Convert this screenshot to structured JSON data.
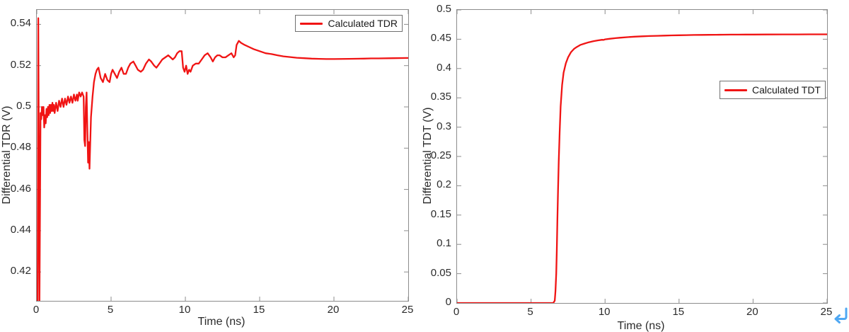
{
  "page": {
    "background": "#ffffff"
  },
  "icons": {
    "return_arrow": {
      "meaning": "return-line-break-marker",
      "color": "#4fa8f3"
    }
  },
  "chart_data": [
    {
      "type": "line",
      "title": "",
      "xlabel": "Time (ns)",
      "ylabel": "Differential TDR (V)",
      "xlim": [
        0,
        25
      ],
      "ylim": [
        0.406,
        0.547
      ],
      "xticks": [
        0,
        5,
        10,
        15,
        20,
        25
      ],
      "xtick_labels": [
        "0",
        "5",
        "10",
        "15",
        "20",
        "25"
      ],
      "yticks": [
        0.42,
        0.44,
        0.46,
        0.48,
        0.5,
        0.52,
        0.54
      ],
      "ytick_labels": [
        "0.42",
        "0.44",
        "0.46",
        "0.48",
        "0.5",
        "0.52",
        "0.54"
      ],
      "grid": false,
      "box": true,
      "line_color": "#f01414",
      "axis_color": "#8c8c8c",
      "legend": {
        "label": "Calculated TDR",
        "position": "top-right"
      },
      "series": [
        {
          "name": "Calculated TDR",
          "points": [
            [
              0.05,
              0.406
            ],
            [
              0.1,
              0.543
            ],
            [
              0.18,
              0.406
            ],
            [
              0.25,
              0.497
            ],
            [
              0.3,
              0.494
            ],
            [
              0.35,
              0.5
            ],
            [
              0.4,
              0.496
            ],
            [
              0.45,
              0.5
            ],
            [
              0.5,
              0.49
            ],
            [
              0.55,
              0.496
            ],
            [
              0.6,
              0.492
            ],
            [
              0.65,
              0.499
            ],
            [
              0.7,
              0.495
            ],
            [
              0.75,
              0.5
            ],
            [
              0.8,
              0.496
            ],
            [
              0.85,
              0.501
            ],
            [
              0.9,
              0.497
            ],
            [
              0.95,
              0.501
            ],
            [
              1,
              0.498
            ],
            [
              1.05,
              0.502
            ],
            [
              1.1,
              0.498
            ],
            [
              1.15,
              0.501
            ],
            [
              1.2,
              0.497
            ],
            [
              1.3,
              0.502
            ],
            [
              1.4,
              0.498
            ],
            [
              1.5,
              0.503
            ],
            [
              1.6,
              0.5
            ],
            [
              1.7,
              0.504
            ],
            [
              1.8,
              0.5
            ],
            [
              1.9,
              0.504
            ],
            [
              2,
              0.501
            ],
            [
              2.1,
              0.505
            ],
            [
              2.2,
              0.502
            ],
            [
              2.3,
              0.505
            ],
            [
              2.4,
              0.502
            ],
            [
              2.5,
              0.506
            ],
            [
              2.6,
              0.503
            ],
            [
              2.7,
              0.506
            ],
            [
              2.75,
              0.503
            ],
            [
              2.85,
              0.507
            ],
            [
              2.95,
              0.505
            ],
            [
              3.05,
              0.507
            ],
            [
              3.15,
              0.505
            ],
            [
              3.2,
              0.484
            ],
            [
              3.25,
              0.481
            ],
            [
              3.3,
              0.5
            ],
            [
              3.35,
              0.507
            ],
            [
              3.4,
              0.49
            ],
            [
              3.45,
              0.473
            ],
            [
              3.5,
              0.483
            ],
            [
              3.55,
              0.47
            ],
            [
              3.65,
              0.495
            ],
            [
              3.75,
              0.505
            ],
            [
              3.85,
              0.512
            ],
            [
              3.95,
              0.516
            ],
            [
              4.05,
              0.518
            ],
            [
              4.15,
              0.519
            ],
            [
              4.3,
              0.514
            ],
            [
              4.45,
              0.512
            ],
            [
              4.6,
              0.516
            ],
            [
              4.75,
              0.513
            ],
            [
              4.9,
              0.512
            ],
            [
              5,
              0.516
            ],
            [
              5.1,
              0.518
            ],
            [
              5.25,
              0.516
            ],
            [
              5.4,
              0.514
            ],
            [
              5.55,
              0.517
            ],
            [
              5.7,
              0.519
            ],
            [
              5.85,
              0.516
            ],
            [
              6,
              0.516
            ],
            [
              6.15,
              0.519
            ],
            [
              6.3,
              0.521
            ],
            [
              6.5,
              0.522
            ],
            [
              6.65,
              0.52
            ],
            [
              6.8,
              0.518
            ],
            [
              7,
              0.517
            ],
            [
              7.15,
              0.518
            ],
            [
              7.35,
              0.521
            ],
            [
              7.55,
              0.523
            ],
            [
              7.7,
              0.522
            ],
            [
              7.9,
              0.52
            ],
            [
              8.05,
              0.519
            ],
            [
              8.25,
              0.521
            ],
            [
              8.45,
              0.523
            ],
            [
              8.65,
              0.524
            ],
            [
              8.85,
              0.525
            ],
            [
              9,
              0.524
            ],
            [
              9.15,
              0.523
            ],
            [
              9.3,
              0.524
            ],
            [
              9.45,
              0.526
            ],
            [
              9.6,
              0.527
            ],
            [
              9.75,
              0.527
            ],
            [
              9.85,
              0.519
            ],
            [
              9.95,
              0.517
            ],
            [
              10.05,
              0.52
            ],
            [
              10.15,
              0.516
            ],
            [
              10.25,
              0.518
            ],
            [
              10.35,
              0.517
            ],
            [
              10.5,
              0.52
            ],
            [
              10.7,
              0.521
            ],
            [
              10.9,
              0.521
            ],
            [
              11.1,
              0.523
            ],
            [
              11.3,
              0.525
            ],
            [
              11.5,
              0.526
            ],
            [
              11.7,
              0.524
            ],
            [
              11.85,
              0.522
            ],
            [
              12,
              0.524
            ],
            [
              12.15,
              0.525
            ],
            [
              12.3,
              0.525
            ],
            [
              12.5,
              0.524
            ],
            [
              12.7,
              0.524
            ],
            [
              12.9,
              0.525
            ],
            [
              13.1,
              0.526
            ],
            [
              13.25,
              0.524
            ],
            [
              13.35,
              0.525
            ],
            [
              13.45,
              0.53
            ],
            [
              13.6,
              0.532
            ],
            [
              13.75,
              0.531
            ],
            [
              14,
              0.53
            ],
            [
              14.3,
              0.529
            ],
            [
              14.6,
              0.528
            ],
            [
              15,
              0.527
            ],
            [
              15.4,
              0.526
            ],
            [
              15.8,
              0.5256
            ],
            [
              16.2,
              0.525
            ],
            [
              16.6,
              0.5245
            ],
            [
              17,
              0.5242
            ],
            [
              17.5,
              0.5238
            ],
            [
              18,
              0.5236
            ],
            [
              18.5,
              0.5234
            ],
            [
              19,
              0.5233
            ],
            [
              19.5,
              0.5232
            ],
            [
              20,
              0.5232
            ],
            [
              21,
              0.5233
            ],
            [
              22,
              0.5234
            ],
            [
              22.5,
              0.5235
            ],
            [
              23,
              0.5235
            ],
            [
              24,
              0.5236
            ],
            [
              25,
              0.5237
            ]
          ]
        }
      ]
    },
    {
      "type": "line",
      "title": "",
      "xlabel": "Time (ns)",
      "ylabel": "Differential TDT (V)",
      "xlim": [
        0,
        25
      ],
      "ylim": [
        0,
        0.5
      ],
      "xticks": [
        0,
        5,
        10,
        15,
        20,
        25
      ],
      "xtick_labels": [
        "0",
        "5",
        "10",
        "15",
        "20",
        "25"
      ],
      "yticks": [
        0,
        0.05,
        0.1,
        0.15,
        0.2,
        0.25,
        0.3,
        0.35,
        0.4,
        0.45,
        0.5
      ],
      "ytick_labels": [
        "0",
        "0.05",
        "0.1",
        "0.15",
        "0.2",
        "0.25",
        "0.3",
        "0.35",
        "0.4",
        "0.45",
        "0.5"
      ],
      "grid": false,
      "box": true,
      "line_color": "#f01414",
      "axis_color": "#8c8c8c",
      "legend": {
        "label": "Calculated TDT",
        "position": "right-middle"
      },
      "series": [
        {
          "name": "Calculated TDT",
          "points": [
            [
              0,
              0
            ],
            [
              6.5,
              0
            ],
            [
              6.6,
              0.004
            ],
            [
              6.65,
              0.02
            ],
            [
              6.7,
              0.05
            ],
            [
              6.74,
              0.09
            ],
            [
              6.78,
              0.14
            ],
            [
              6.82,
              0.19
            ],
            [
              6.87,
              0.24
            ],
            [
              6.93,
              0.29
            ],
            [
              7,
              0.335
            ],
            [
              7.1,
              0.372
            ],
            [
              7.2,
              0.393
            ],
            [
              7.35,
              0.409
            ],
            [
              7.5,
              0.419
            ],
            [
              7.7,
              0.428
            ],
            [
              7.9,
              0.4335
            ],
            [
              8.1,
              0.437
            ],
            [
              8.35,
              0.4405
            ],
            [
              8.6,
              0.4425
            ],
            [
              8.9,
              0.4448
            ],
            [
              9.2,
              0.4465
            ],
            [
              9.5,
              0.448
            ],
            [
              9.8,
              0.449
            ],
            [
              9.9,
              0.4488
            ],
            [
              10,
              0.4498
            ],
            [
              10.3,
              0.4507
            ],
            [
              10.7,
              0.4518
            ],
            [
              11,
              0.4525
            ],
            [
              11.5,
              0.4535
            ],
            [
              12,
              0.4543
            ],
            [
              12.5,
              0.4549
            ],
            [
              13,
              0.4554
            ],
            [
              13.5,
              0.4558
            ],
            [
              14,
              0.4562
            ],
            [
              14.5,
              0.4565
            ],
            [
              15,
              0.4568
            ],
            [
              15.5,
              0.457
            ],
            [
              16,
              0.4572
            ],
            [
              16.5,
              0.4574
            ],
            [
              17,
              0.4575
            ],
            [
              17.5,
              0.4576
            ],
            [
              18,
              0.4577
            ],
            [
              18.5,
              0.4578
            ],
            [
              19,
              0.4579
            ],
            [
              19.5,
              0.458
            ],
            [
              20,
              0.458
            ],
            [
              21,
              0.4581
            ],
            [
              22,
              0.4582
            ],
            [
              23,
              0.4582
            ],
            [
              24,
              0.4583
            ],
            [
              25,
              0.4583
            ]
          ]
        }
      ]
    }
  ]
}
